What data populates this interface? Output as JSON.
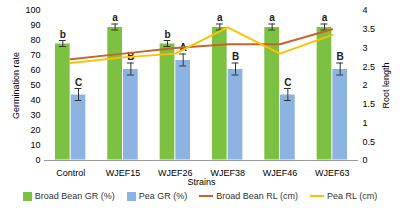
{
  "chart_data": {
    "type": "bar",
    "categories": [
      "Control",
      "WJEF15",
      "WJEF26",
      "WJEF38",
      "WJEF46",
      "WJEF63"
    ],
    "xlabel": "Strains",
    "ylabel": "Germination rate",
    "y2label": "Root length",
    "ylim": [
      0,
      100
    ],
    "yticks": [
      0,
      10,
      20,
      30,
      40,
      50,
      60,
      70,
      80,
      90,
      100
    ],
    "y2lim": [
      0,
      4
    ],
    "y2ticks": [
      0,
      0.5,
      1,
      1.5,
      2,
      2.5,
      3,
      3.5,
      4
    ],
    "grid": false,
    "legend": "bottom",
    "series": [
      {
        "name": "Broad Bean GR (%)",
        "type": "bar",
        "color": "#7cc142",
        "values": [
          78,
          89,
          78,
          89,
          89,
          89
        ],
        "errors": [
          2,
          2,
          2,
          2,
          2,
          2
        ],
        "letters": [
          "b",
          "a",
          "b",
          "a",
          "a",
          "a"
        ]
      },
      {
        "name": "Pea GR (%)",
        "type": "bar",
        "color": "#8db3e2",
        "values": [
          44,
          61,
          67,
          61,
          44,
          61
        ],
        "errors": [
          4,
          4,
          4,
          4,
          4,
          4
        ],
        "letters": [
          "C",
          "B",
          "A",
          "B",
          "C",
          "B"
        ]
      },
      {
        "name": "Broad Bean RL (cm)",
        "type": "line",
        "axis": "y2",
        "color": "#c8642a",
        "values": [
          2.7,
          2.85,
          3.0,
          3.1,
          3.1,
          3.5
        ]
      },
      {
        "name": "Pea RL (cm)",
        "type": "line",
        "axis": "y2",
        "color": "#ffc000",
        "values": [
          2.6,
          2.75,
          2.85,
          3.55,
          2.85,
          3.35
        ]
      }
    ]
  }
}
